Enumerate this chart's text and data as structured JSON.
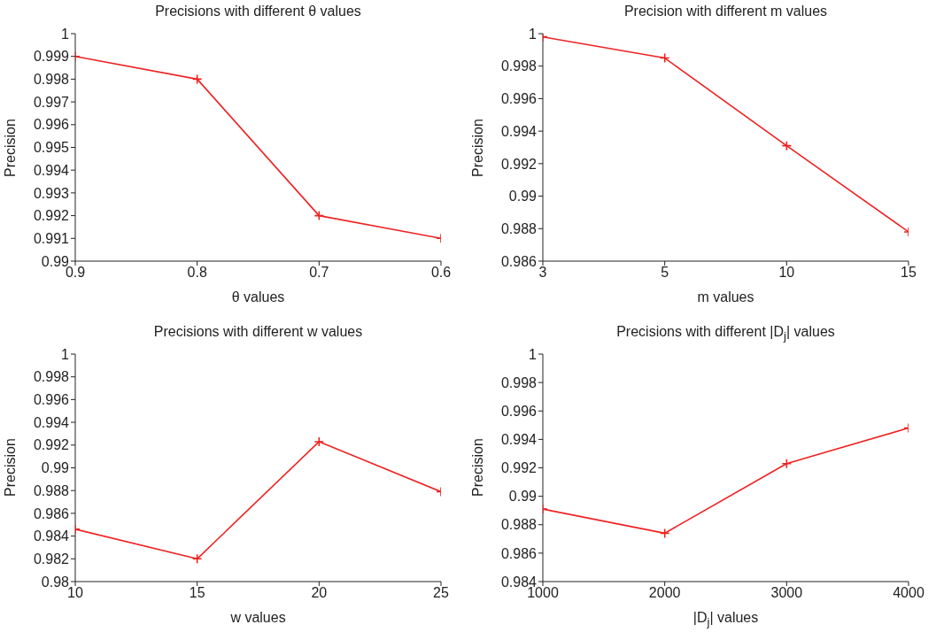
{
  "chart_data": [
    {
      "type": "line",
      "title": "Precisions with different θ values",
      "xlabel": "θ values",
      "ylabel": "Precision",
      "categories": [
        "0.9",
        "0.8",
        "0.7",
        "0.6"
      ],
      "series": [
        {
          "color": "#ee2222",
          "values": [
            0.999,
            0.998,
            0.992,
            0.991
          ]
        }
      ],
      "ylim": [
        0.99,
        1
      ],
      "yticks": [
        0.99,
        0.991,
        0.992,
        0.993,
        0.994,
        0.995,
        0.996,
        0.997,
        0.998,
        0.999,
        1
      ],
      "marker": "cross",
      "line_style": "solid"
    },
    {
      "type": "line",
      "title": "Precision with different m values",
      "xlabel": "m values",
      "ylabel": "Precision",
      "categories": [
        "3",
        "5",
        "10",
        "15"
      ],
      "series": [
        {
          "color": "#ee2222",
          "values": [
            0.9998,
            0.9985,
            0.9931,
            0.9878
          ]
        }
      ],
      "ylim": [
        0.986,
        1
      ],
      "yticks": [
        0.986,
        0.988,
        0.99,
        0.992,
        0.994,
        0.996,
        0.998,
        1
      ],
      "marker": "cross",
      "line_style": "solid"
    },
    {
      "type": "line",
      "title": "Precisions with different w values",
      "xlabel": "w values",
      "ylabel": "Precision",
      "categories": [
        "10",
        "15",
        "20",
        "25"
      ],
      "series": [
        {
          "color": "#ee2222",
          "values": [
            0.9846,
            0.982,
            0.9923,
            0.9879
          ]
        }
      ],
      "ylim": [
        0.98,
        1
      ],
      "yticks": [
        0.98,
        0.982,
        0.984,
        0.986,
        0.988,
        0.99,
        0.992,
        0.994,
        0.996,
        0.998,
        1
      ],
      "marker": "cross",
      "line_style": "solid"
    },
    {
      "type": "line",
      "title": "Precisions with different |D$_{j}$| values",
      "xlabel": "|D$_{j}$| values",
      "ylabel": "Precision",
      "categories": [
        "1000",
        "2000",
        "3000",
        "4000"
      ],
      "series": [
        {
          "color": "#ee2222",
          "values": [
            0.9891,
            0.9874,
            0.9923,
            0.9948
          ]
        }
      ],
      "ylim": [
        0.984,
        1
      ],
      "yticks": [
        0.984,
        0.986,
        0.988,
        0.99,
        0.992,
        0.994,
        0.996,
        0.998,
        1
      ],
      "marker": "cross",
      "line_style": "solid"
    }
  ]
}
